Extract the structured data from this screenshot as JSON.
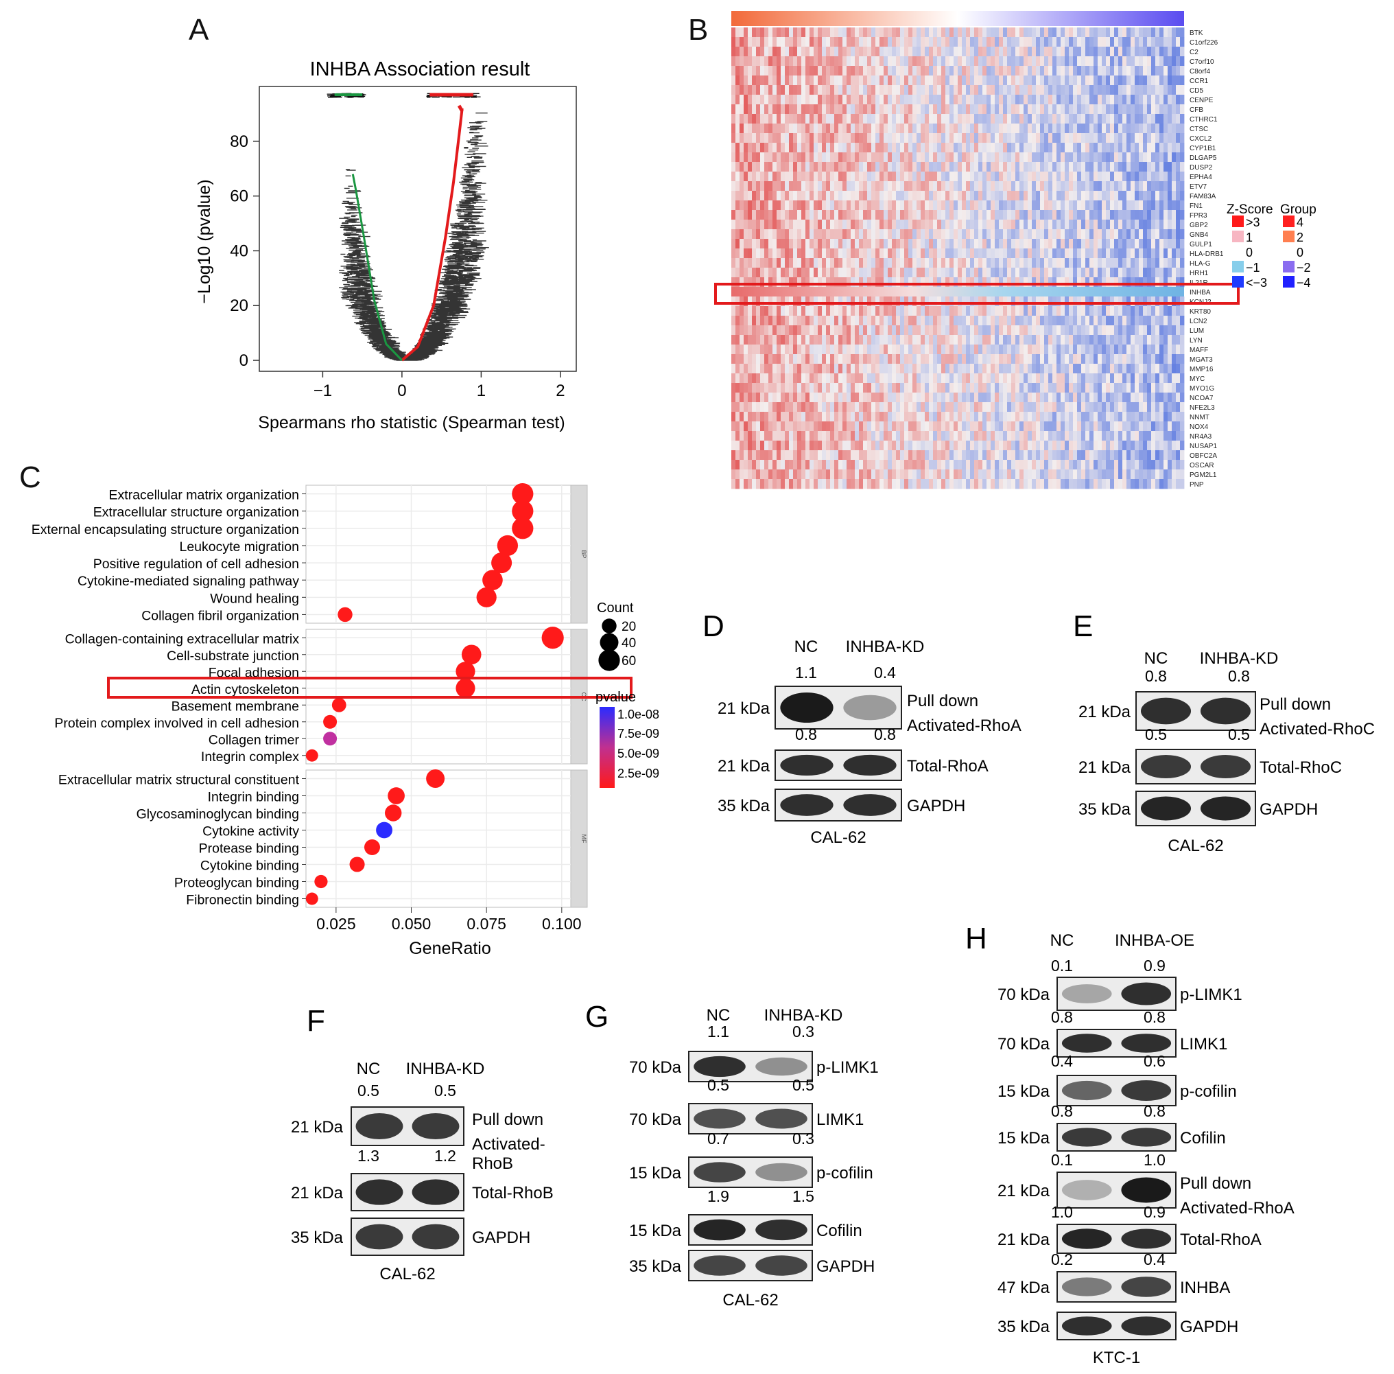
{
  "panels": {
    "A": {
      "letter": "A"
    },
    "B": {
      "letter": "B"
    },
    "C": {
      "letter": "C"
    },
    "D": {
      "letter": "D"
    },
    "E": {
      "letter": "E"
    },
    "F": {
      "letter": "F"
    },
    "G": {
      "letter": "G"
    },
    "H": {
      "letter": "H"
    }
  },
  "chart_data": [
    {
      "panel": "A",
      "type": "scatter",
      "title": "INHBA Association result",
      "xlabel": "Spearmans rho statistic (Spearman test)",
      "ylabel": "−Log10 (pvalue)",
      "xlim": [
        -1.8,
        2.2
      ],
      "ylim": [
        -4,
        100
      ],
      "xticks": [
        "−1",
        "0",
        "1",
        "2"
      ],
      "xtick_values": [
        -1,
        0,
        1,
        2
      ],
      "yticks": [
        "0",
        "20",
        "40",
        "60",
        "80"
      ],
      "ytick_values": [
        0,
        20,
        40,
        60,
        80
      ],
      "colors": {
        "positive": "#e31a1c",
        "negative": "#1a9641",
        "other": "#000000"
      },
      "curve_positive": [
        [
          0,
          0
        ],
        [
          0.2,
          5
        ],
        [
          0.4,
          20
        ],
        [
          0.55,
          45
        ],
        [
          0.65,
          65
        ],
        [
          0.72,
          82
        ],
        [
          0.76,
          92
        ]
      ],
      "curve_negative": [
        [
          0,
          0
        ],
        [
          -0.2,
          6
        ],
        [
          -0.35,
          22
        ],
        [
          -0.48,
          45
        ],
        [
          -0.58,
          62
        ],
        [
          -0.62,
          68
        ]
      ],
      "grid": false
    },
    {
      "panel": "B",
      "type": "heatmap",
      "genes": [
        "BTK",
        "C1orf226",
        "C2",
        "C7orf10",
        "C8orf4",
        "CCR1",
        "CD5",
        "CENPE",
        "CFB",
        "CTHRC1",
        "CTSC",
        "CXCL2",
        "CYP1B1",
        "DLGAP5",
        "DUSP2",
        "EPHA4",
        "ETV7",
        "FAM83A",
        "FN1",
        "FPR3",
        "GBP2",
        "GNB4",
        "GULP1",
        "HLA-DRB1",
        "HLA-G",
        "HRH1",
        "IL21R",
        "INHBA",
        "KCNJ2",
        "KRT80",
        "LCN2",
        "LUM",
        "LYN",
        "MAFF",
        "MGAT3",
        "MMP16",
        "MYC",
        "MYO1G",
        "NCOA7",
        "NFE2L3",
        "NNMT",
        "NOX4",
        "NR4A3",
        "NUSAP1",
        "OBFC2A",
        "OSCAR",
        "PGM2L1",
        "PNP"
      ],
      "highlight_gene": "INHBA",
      "zscore_legend": {
        "title": "Z-Score",
        "labels": [
          ">3",
          "1",
          "0",
          "−1",
          "<−3"
        ],
        "colors": [
          "#ff1a1a",
          "#f7b6c2",
          "#ffffff",
          "#87ceeb",
          "#1f3bff"
        ]
      },
      "group_legend": {
        "title": "Group",
        "labels": [
          "4",
          "2",
          "0",
          "−2",
          "−4"
        ],
        "colors": [
          "#ff2020",
          "#ff7f50",
          "#ffffff",
          "#8a6cf0",
          "#2020ff"
        ]
      },
      "colors": {
        "high": "#e25050",
        "mid": "#f5f0f0",
        "low": "#4a6be0",
        "highlight_box": "#e31a1c"
      }
    },
    {
      "panel": "C",
      "type": "scatter",
      "xlabel": "GeneRatio",
      "xlim": [
        0.015,
        0.103
      ],
      "xticks": [
        "0.025",
        "0.050",
        "0.075",
        "0.100"
      ],
      "xtick_values": [
        0.025,
        0.05,
        0.075,
        0.1
      ],
      "facets": [
        "BP",
        "CC",
        "MF"
      ],
      "terms": [
        {
          "label": "Extracellular matrix organization",
          "facet": "BP",
          "ratio": 0.087,
          "count": 60,
          "pval": 1e-10
        },
        {
          "label": "Extracellular structure organization",
          "facet": "BP",
          "ratio": 0.087,
          "count": 60,
          "pval": 1e-10
        },
        {
          "label": "External encapsulating structure organization",
          "facet": "BP",
          "ratio": 0.087,
          "count": 60,
          "pval": 1e-10
        },
        {
          "label": "Leukocyte migration",
          "facet": "BP",
          "ratio": 0.082,
          "count": 55,
          "pval": 1e-10
        },
        {
          "label": "Positive regulation of cell adhesion",
          "facet": "BP",
          "ratio": 0.08,
          "count": 54,
          "pval": 1e-10
        },
        {
          "label": "Cytokine-mediated signaling pathway",
          "facet": "BP",
          "ratio": 0.077,
          "count": 52,
          "pval": 1e-10
        },
        {
          "label": "Wound healing",
          "facet": "BP",
          "ratio": 0.075,
          "count": 50,
          "pval": 1e-10
        },
        {
          "label": "Collagen fibril organization",
          "facet": "BP",
          "ratio": 0.028,
          "count": 20,
          "pval": 1e-10
        },
        {
          "label": "Collagen-containing extracellular matrix",
          "facet": "CC",
          "ratio": 0.097,
          "count": 65,
          "pval": 1e-10
        },
        {
          "label": "Cell-substrate junction",
          "facet": "CC",
          "ratio": 0.07,
          "count": 47,
          "pval": 1e-10
        },
        {
          "label": "Focal adhesion",
          "facet": "CC",
          "ratio": 0.068,
          "count": 45,
          "pval": 1e-10
        },
        {
          "label": "Actin cytoskeleton",
          "facet": "CC",
          "ratio": 0.068,
          "count": 45,
          "pval": 1e-10
        },
        {
          "label": "Basement membrane",
          "facet": "CC",
          "ratio": 0.026,
          "count": 18,
          "pval": 1e-10
        },
        {
          "label": "Protein complex involved in cell adhesion",
          "facet": "CC",
          "ratio": 0.023,
          "count": 16,
          "pval": 1e-10
        },
        {
          "label": "Collagen trimer",
          "facet": "CC",
          "ratio": 0.023,
          "count": 16,
          "pval": 5e-09
        },
        {
          "label": "Integrin complex",
          "facet": "CC",
          "ratio": 0.017,
          "count": 11,
          "pval": 1e-10
        },
        {
          "label": "Extracellular matrix structural constituent",
          "facet": "MF",
          "ratio": 0.058,
          "count": 40,
          "pval": 1e-10
        },
        {
          "label": "Integrin binding",
          "facet": "MF",
          "ratio": 0.045,
          "count": 31,
          "pval": 1e-10
        },
        {
          "label": "Glycosaminoglycan binding",
          "facet": "MF",
          "ratio": 0.044,
          "count": 30,
          "pval": 1e-10
        },
        {
          "label": "Cytokine activity",
          "facet": "MF",
          "ratio": 0.041,
          "count": 28,
          "pval": 1e-08
        },
        {
          "label": "Protease binding",
          "facet": "MF",
          "ratio": 0.037,
          "count": 25,
          "pval": 1e-10
        },
        {
          "label": "Cytokine binding",
          "facet": "MF",
          "ratio": 0.032,
          "count": 22,
          "pval": 1e-10
        },
        {
          "label": "Proteoglycan binding",
          "facet": "MF",
          "ratio": 0.02,
          "count": 14,
          "pval": 1e-10
        },
        {
          "label": "Fibronectin binding",
          "facet": "MF",
          "ratio": 0.017,
          "count": 11,
          "pval": 1e-10
        }
      ],
      "highlight_term": "Actin cytoskeleton",
      "count_legend": {
        "title": "Count",
        "values": [
          20,
          40,
          60
        ],
        "labels": [
          "20",
          "40",
          "60"
        ]
      },
      "pvalue_legend": {
        "title": "pvalue",
        "labels": [
          "1.0e-08",
          "7.5e-09",
          "5.0e-09",
          "2.5e-09"
        ],
        "colors": [
          "#2b2bff",
          "#c03090",
          "#ff1a1a"
        ]
      },
      "colors": {
        "highlight_box": "#e31a1c",
        "facet_strip": "#d9d9d9",
        "grid": "#ebebeb"
      }
    }
  ],
  "blots": {
    "D": {
      "columns": [
        "NC",
        "INHBA-KD"
      ],
      "cell_line": "CAL-62",
      "rows": [
        {
          "kda": "21 kDa",
          "values": [
            "1.1",
            "0.4"
          ],
          "label_1": "Pull down",
          "label_2": "Activated-RhoA",
          "intensity": [
            0.95,
            0.35
          ]
        },
        {
          "kda": "21 kDa",
          "values": [
            "0.8",
            "0.8"
          ],
          "label_1": "Total-RhoA",
          "label_2": "",
          "intensity": [
            0.85,
            0.85
          ]
        },
        {
          "kda": "35 kDa",
          "values": [
            "",
            ""
          ],
          "label_1": "GAPDH",
          "label_2": "",
          "intensity": [
            0.85,
            0.85
          ]
        }
      ]
    },
    "E": {
      "columns": [
        "NC",
        "INHBA-KD"
      ],
      "cell_line": "CAL-62",
      "rows": [
        {
          "kda": "21 kDa",
          "values": [
            "0.8",
            "0.8"
          ],
          "label_1": "Pull down",
          "label_2": "Activated-RhoC",
          "intensity": [
            0.85,
            0.85
          ]
        },
        {
          "kda": "21 kDa",
          "values": [
            "0.5",
            "0.5"
          ],
          "label_1": "Total-RhoC",
          "label_2": "",
          "intensity": [
            0.8,
            0.8
          ]
        },
        {
          "kda": "35 kDa",
          "values": [
            "",
            ""
          ],
          "label_1": "GAPDH",
          "label_2": "",
          "intensity": [
            0.9,
            0.9
          ]
        }
      ]
    },
    "F": {
      "columns": [
        "NC",
        "INHBA-KD"
      ],
      "cell_line": "CAL-62",
      "rows": [
        {
          "kda": "21 kDa",
          "values": [
            "0.5",
            "0.5"
          ],
          "label_1": "Pull down",
          "label_2": "Activated-",
          "label_3": "RhoB",
          "intensity": [
            0.8,
            0.8
          ]
        },
        {
          "kda": "21 kDa",
          "values": [
            "1.3",
            "1.2"
          ],
          "label_1": "Total-RhoB",
          "label_2": "",
          "intensity": [
            0.85,
            0.85
          ]
        },
        {
          "kda": "35 kDa",
          "values": [
            "",
            ""
          ],
          "label_1": "GAPDH",
          "label_2": "",
          "intensity": [
            0.8,
            0.8
          ]
        }
      ]
    },
    "G": {
      "columns": [
        "NC",
        "INHBA-KD"
      ],
      "cell_line": "CAL-62",
      "rows": [
        {
          "kda": "70 kDa",
          "values": [
            "1.1",
            "0.3"
          ],
          "label_1": "p-LIMK1",
          "intensity": [
            0.85,
            0.4
          ]
        },
        {
          "kda": "70 kDa",
          "values": [
            "0.5",
            "0.5"
          ],
          "label_1": "LIMK1",
          "intensity": [
            0.7,
            0.7
          ]
        },
        {
          "kda": "15 kDa",
          "values": [
            "0.7",
            "0.3"
          ],
          "label_1": "p-cofilin",
          "intensity": [
            0.75,
            0.4
          ]
        },
        {
          "kda": "15 kDa",
          "values": [
            "1.9",
            "1.5"
          ],
          "label_1": "Cofilin",
          "intensity": [
            0.9,
            0.85
          ]
        },
        {
          "kda": "35 kDa",
          "values": [
            "",
            ""
          ],
          "label_1": "GAPDH",
          "intensity": [
            0.75,
            0.75
          ]
        }
      ]
    },
    "H": {
      "columns": [
        "NC",
        "INHBA-OE"
      ],
      "cell_line": "KTC-1",
      "rows": [
        {
          "kda": "70 kDa",
          "values": [
            "0.1",
            "0.9"
          ],
          "label_1": "p-LIMK1",
          "intensity": [
            0.3,
            0.85
          ]
        },
        {
          "kda": "70 kDa",
          "values": [
            "0.8",
            "0.8"
          ],
          "label_1": "LIMK1",
          "intensity": [
            0.85,
            0.85
          ]
        },
        {
          "kda": "15 kDa",
          "values": [
            "0.4",
            "0.6"
          ],
          "label_1": "p-cofilin",
          "intensity": [
            0.6,
            0.8
          ]
        },
        {
          "kda": "15 kDa",
          "values": [
            "0.8",
            "0.8"
          ],
          "label_1": "Cofilin",
          "intensity": [
            0.8,
            0.8
          ]
        },
        {
          "kda": "21 kDa",
          "values": [
            "0.1",
            "1.0"
          ],
          "label_1": "Pull down",
          "label_2": "Activated-RhoA",
          "intensity": [
            0.25,
            0.95
          ]
        },
        {
          "kda": "21 kDa",
          "values": [
            "1.0",
            "0.9"
          ],
          "label_1": "Total-RhoA",
          "intensity": [
            0.9,
            0.85
          ]
        },
        {
          "kda": "47 kDa",
          "values": [
            "0.2",
            "0.4"
          ],
          "label_1": "INHBA",
          "intensity": [
            0.5,
            0.75
          ]
        },
        {
          "kda": "35 kDa",
          "values": [
            "",
            ""
          ],
          "label_1": "GAPDH",
          "intensity": [
            0.85,
            0.85
          ]
        }
      ]
    }
  }
}
